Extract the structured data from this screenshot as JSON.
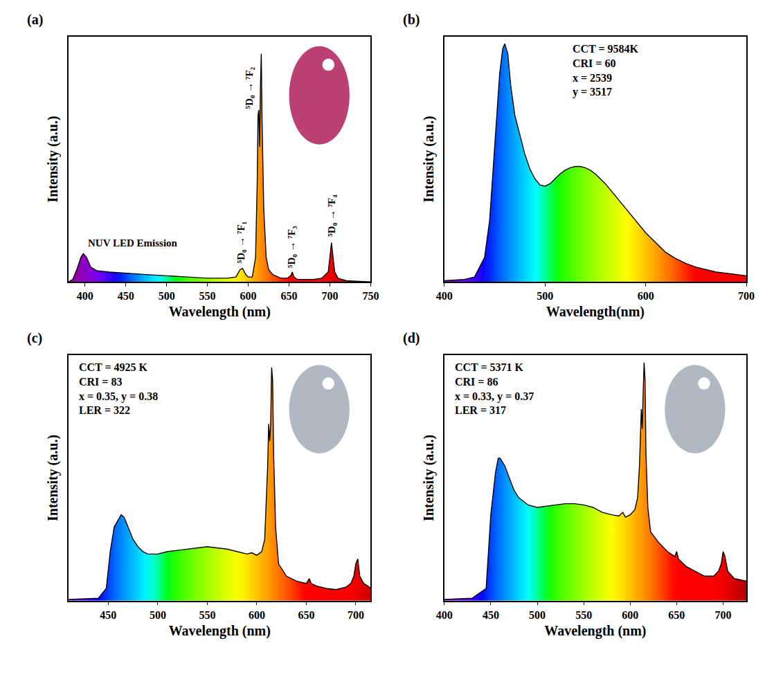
{
  "chart_data": [
    {
      "type": "line",
      "panel": "(a)",
      "x_label": "Wavelength (nm)",
      "y_label": "Intensity (a.u.)",
      "tick_labels": "x",
      "color": "#000000",
      "xlim": [
        380,
        750
      ],
      "xticks": [
        400,
        450,
        500,
        550,
        600,
        650,
        700,
        750
      ],
      "ylim": [
        0,
        1
      ],
      "x": [
        380,
        385,
        390,
        395,
        398,
        402,
        407,
        415,
        430,
        450,
        475,
        500,
        525,
        550,
        575,
        585,
        590,
        593,
        597,
        600,
        605,
        609,
        611,
        612,
        613,
        614,
        615,
        616,
        617,
        619,
        622,
        625,
        630,
        640,
        648,
        652,
        654,
        656,
        660,
        680,
        690,
        695,
        698,
        700,
        702,
        704,
        706,
        710,
        720,
        750
      ],
      "values": [
        0.0,
        0.01,
        0.05,
        0.1,
        0.115,
        0.1,
        0.06,
        0.045,
        0.04,
        0.035,
        0.03,
        0.025,
        0.02,
        0.015,
        0.015,
        0.02,
        0.05,
        0.055,
        0.03,
        0.02,
        0.02,
        0.1,
        0.4,
        0.68,
        0.7,
        0.55,
        0.8,
        0.93,
        0.65,
        0.3,
        0.1,
        0.05,
        0.03,
        0.015,
        0.015,
        0.025,
        0.04,
        0.02,
        0.01,
        0.01,
        0.015,
        0.03,
        0.04,
        0.1,
        0.16,
        0.1,
        0.04,
        0.015,
        0.005,
        0.0
      ],
      "annotations": [
        {
          "text": "NUV LED Emission",
          "x": 402,
          "y": 0.13
        }
      ],
      "peak_labels": [
        {
          "text": "⁵D₀ → ⁷F₁",
          "x": 591,
          "y": 0.07
        },
        {
          "text": "⁵D₀ → ⁷F₂",
          "x": 601,
          "y": 0.7
        },
        {
          "text": "⁵D₀ → ⁷F₃",
          "x": 653,
          "y": 0.05
        },
        {
          "text": "⁵D₀ → ⁷F₄",
          "x": 702,
          "y": 0.18
        }
      ]
    },
    {
      "type": "line",
      "panel": "(b)",
      "x_label": "Wavelength(nm)",
      "y_label": "Intensity (a.u.)",
      "tick_labels": "x",
      "color": "#000000",
      "xlim": [
        400,
        700
      ],
      "xticks": [
        400,
        500,
        600,
        700
      ],
      "ylim": [
        0,
        1
      ],
      "x": [
        400,
        420,
        430,
        440,
        445,
        450,
        455,
        458,
        460,
        463,
        466,
        470,
        475,
        480,
        485,
        490,
        495,
        500,
        505,
        510,
        515,
        520,
        525,
        530,
        535,
        540,
        545,
        550,
        560,
        570,
        580,
        590,
        600,
        610,
        620,
        630,
        640,
        650,
        660,
        670,
        680,
        690,
        700
      ],
      "values": [
        0.005,
        0.01,
        0.02,
        0.1,
        0.25,
        0.55,
        0.85,
        0.95,
        0.97,
        0.93,
        0.8,
        0.68,
        0.6,
        0.52,
        0.46,
        0.42,
        0.395,
        0.39,
        0.4,
        0.42,
        0.44,
        0.455,
        0.465,
        0.47,
        0.47,
        0.465,
        0.455,
        0.44,
        0.4,
        0.35,
        0.3,
        0.25,
        0.2,
        0.16,
        0.12,
        0.095,
        0.075,
        0.06,
        0.05,
        0.04,
        0.035,
        0.03,
        0.025
      ],
      "info": [
        "CCT = 9584K",
        "CRI = 60",
        "x = 2539",
        "y = 3517"
      ]
    },
    {
      "type": "line",
      "panel": "(c)",
      "x_label": "Wavelength (nm)",
      "y_label": "Intensity (a.u.)",
      "tick_labels": "x",
      "color": "#000000",
      "xlim": [
        410,
        715
      ],
      "xticks": [
        450,
        500,
        550,
        600,
        650,
        700
      ],
      "ylim": [
        0,
        1
      ],
      "x": [
        410,
        440,
        448,
        452,
        456,
        460,
        463,
        466,
        470,
        475,
        480,
        485,
        490,
        500,
        510,
        520,
        530,
        540,
        550,
        560,
        570,
        580,
        590,
        595,
        600,
        605,
        608,
        611,
        612,
        613,
        614,
        615,
        616,
        617,
        619,
        622,
        630,
        640,
        650,
        653,
        655,
        660,
        670,
        680,
        690,
        695,
        698,
        700,
        702,
        704,
        708,
        712,
        715
      ],
      "values": [
        0.005,
        0.01,
        0.05,
        0.2,
        0.3,
        0.33,
        0.35,
        0.34,
        0.3,
        0.25,
        0.22,
        0.2,
        0.19,
        0.19,
        0.2,
        0.205,
        0.21,
        0.215,
        0.22,
        0.215,
        0.21,
        0.2,
        0.19,
        0.195,
        0.185,
        0.2,
        0.25,
        0.55,
        0.72,
        0.65,
        0.72,
        0.95,
        0.9,
        0.6,
        0.3,
        0.15,
        0.1,
        0.08,
        0.07,
        0.09,
        0.07,
        0.06,
        0.05,
        0.045,
        0.055,
        0.07,
        0.1,
        0.15,
        0.17,
        0.1,
        0.07,
        0.06,
        0.05
      ],
      "info": [
        "CCT = 4925 K",
        "CRI = 83",
        "x = 0.35, y = 0.38",
        "LER = 322"
      ]
    },
    {
      "type": "line",
      "panel": "(d)",
      "x_label": "Wavelength (nm)",
      "y_label": "Intensity (a.u.)",
      "tick_labels": "x",
      "color": "#000000",
      "xlim": [
        400,
        725
      ],
      "xticks": [
        400,
        450,
        500,
        550,
        600,
        650,
        700
      ],
      "ylim": [
        0,
        1
      ],
      "x": [
        400,
        430,
        445,
        450,
        455,
        458,
        460,
        465,
        470,
        475,
        480,
        490,
        500,
        510,
        520,
        530,
        540,
        550,
        560,
        570,
        580,
        588,
        592,
        595,
        600,
        605,
        608,
        610,
        612,
        613,
        614,
        615,
        616,
        617,
        619,
        622,
        630,
        640,
        648,
        650,
        652,
        660,
        680,
        690,
        695,
        698,
        700,
        702,
        705,
        712,
        725
      ],
      "values": [
        0.005,
        0.01,
        0.05,
        0.35,
        0.52,
        0.58,
        0.58,
        0.55,
        0.5,
        0.45,
        0.42,
        0.39,
        0.38,
        0.385,
        0.39,
        0.395,
        0.395,
        0.39,
        0.38,
        0.36,
        0.35,
        0.345,
        0.36,
        0.34,
        0.35,
        0.37,
        0.42,
        0.55,
        0.78,
        0.7,
        0.85,
        0.97,
        0.9,
        0.6,
        0.38,
        0.28,
        0.24,
        0.2,
        0.18,
        0.2,
        0.17,
        0.14,
        0.1,
        0.1,
        0.12,
        0.15,
        0.2,
        0.18,
        0.12,
        0.09,
        0.08
      ],
      "info": [
        "CCT = 5371 K",
        "CRI = 86",
        "x = 0.33, y = 0.37",
        "LER = 317"
      ]
    }
  ]
}
